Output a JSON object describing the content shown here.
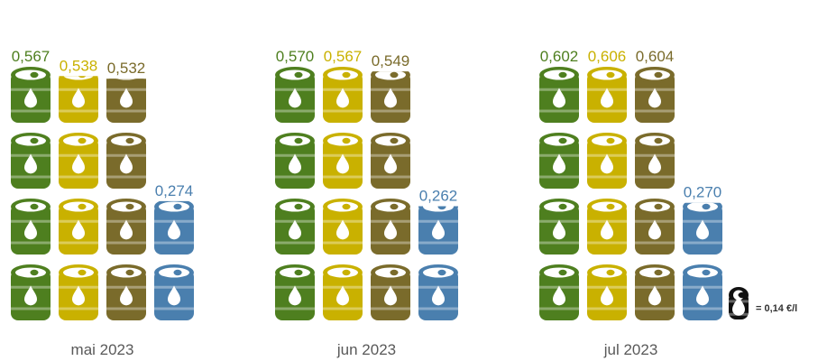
{
  "chart_data": {
    "type": "bar",
    "categories": [
      "mai 2023",
      "jun 2023",
      "jul 2023"
    ],
    "series": [
      {
        "values": [
          0.567,
          0.57,
          0.602
        ],
        "labels": [
          "0,567",
          "0,570",
          "0,602"
        ],
        "color": "#4e7f1f"
      },
      {
        "values": [
          0.538,
          0.567,
          0.606
        ],
        "labels": [
          "0,538",
          "0,567",
          "0,606"
        ],
        "color": "#c9b100"
      },
      {
        "values": [
          0.532,
          0.549,
          0.604
        ],
        "labels": [
          "0,532",
          "0,549",
          "0,604"
        ],
        "color": "#7a6b2b"
      },
      {
        "values": [
          0.274,
          0.262,
          0.27
        ],
        "labels": [
          "0,274",
          "0,262",
          "0,270"
        ],
        "color": "#4a7fae"
      }
    ],
    "unit_per_icon": 0.14,
    "legend": {
      "text": "= 0,14 €/l",
      "icon_color": "#111111"
    }
  }
}
